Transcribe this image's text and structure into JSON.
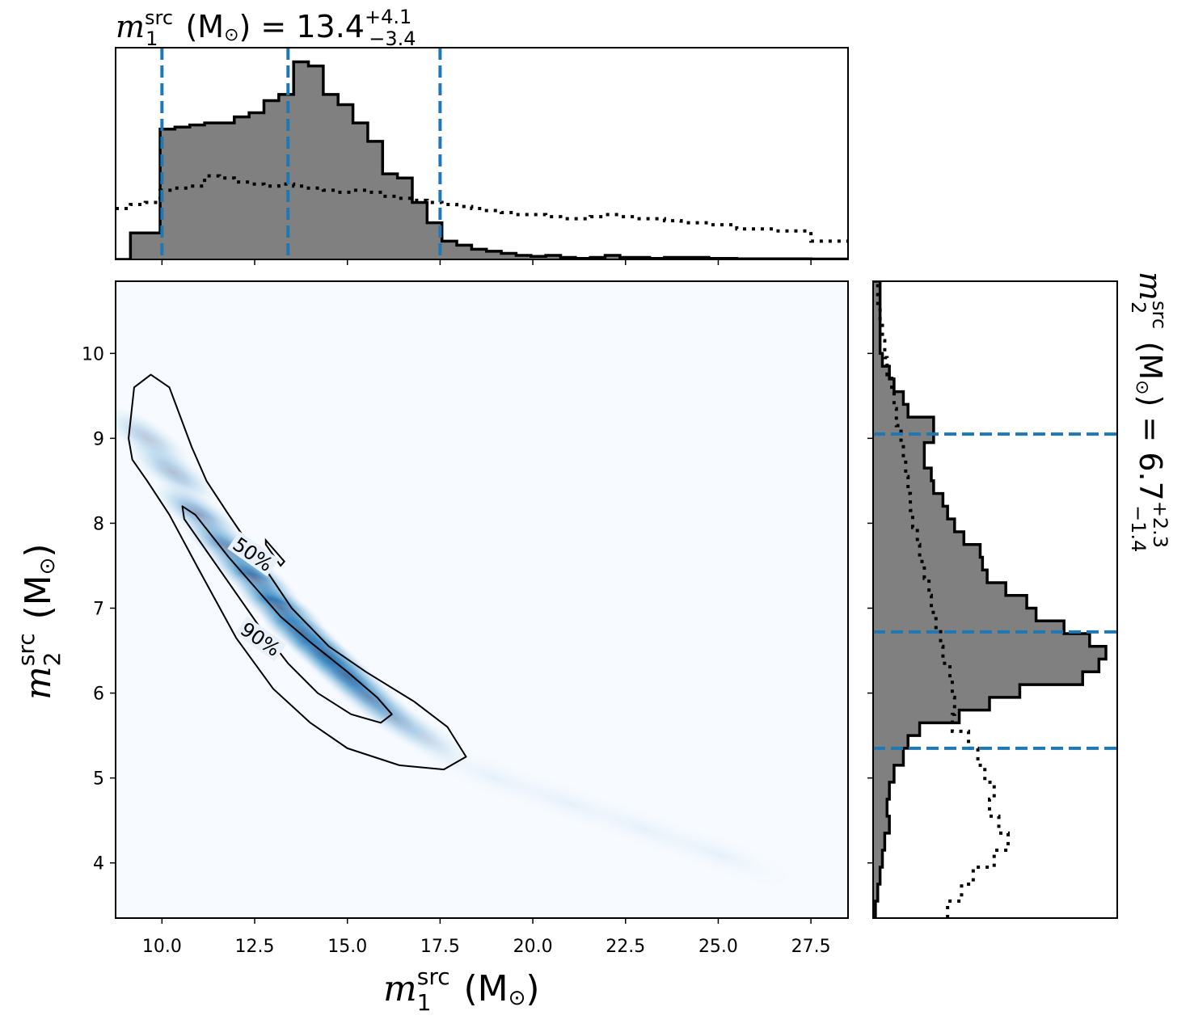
{
  "chart_data": [
    {
      "type": "histogram",
      "panel": "top-marginal",
      "title": {
        "symbol": "m",
        "sub": "1",
        "sup": "src",
        "unit": " (M",
        "sun": "⊙",
        "close": ")",
        "eq": " = 13.4",
        "plus": "+4.1",
        "minus": "−3.4"
      },
      "x_range": [
        8.75,
        28.5
      ],
      "quantiles": [
        10.0,
        13.4,
        17.5
      ],
      "x_ticks": [
        10.0,
        12.5,
        15.0,
        17.5,
        20.0,
        22.5,
        25.0,
        27.5
      ],
      "posterior_bins": [
        [
          8.75,
          0
        ],
        [
          9.15,
          0.13
        ],
        [
          9.55,
          0.13
        ],
        [
          9.95,
          0.64
        ],
        [
          10.35,
          0.65
        ],
        [
          10.75,
          0.66
        ],
        [
          11.15,
          0.67
        ],
        [
          11.55,
          0.67
        ],
        [
          11.95,
          0.7
        ],
        [
          12.35,
          0.72
        ],
        [
          12.75,
          0.78
        ],
        [
          13.15,
          0.81
        ],
        [
          13.55,
          0.97
        ],
        [
          13.95,
          0.95
        ],
        [
          14.35,
          0.81
        ],
        [
          14.75,
          0.76
        ],
        [
          15.15,
          0.67
        ],
        [
          15.55,
          0.58
        ],
        [
          15.95,
          0.42
        ],
        [
          16.35,
          0.4
        ],
        [
          16.75,
          0.28
        ],
        [
          17.15,
          0.18
        ],
        [
          17.55,
          0.09
        ],
        [
          17.95,
          0.07
        ],
        [
          18.35,
          0.05
        ],
        [
          18.75,
          0.04
        ],
        [
          19.15,
          0.03
        ],
        [
          19.55,
          0.02
        ],
        [
          19.95,
          0.015
        ],
        [
          20.35,
          0.02
        ],
        [
          20.75,
          0.01
        ],
        [
          21.15,
          0.005
        ],
        [
          21.55,
          0.01
        ],
        [
          21.95,
          0.02
        ],
        [
          22.35,
          0.01
        ],
        [
          22.75,
          0.01
        ],
        [
          23.15,
          0.005
        ],
        [
          23.55,
          0.01
        ],
        [
          24.0,
          0.01
        ],
        [
          24.75,
          0.005
        ],
        [
          25.5,
          0.003
        ],
        [
          27.5,
          0.002
        ],
        [
          28.5,
          0
        ]
      ],
      "prior_bins": [
        [
          8.75,
          0.25
        ],
        [
          9.15,
          0.27
        ],
        [
          9.55,
          0.28
        ],
        [
          9.95,
          0.34
        ],
        [
          10.35,
          0.35
        ],
        [
          10.75,
          0.36
        ],
        [
          11.15,
          0.41
        ],
        [
          11.55,
          0.4
        ],
        [
          11.95,
          0.38
        ],
        [
          12.35,
          0.37
        ],
        [
          12.75,
          0.36
        ],
        [
          13.15,
          0.37
        ],
        [
          13.55,
          0.36
        ],
        [
          13.95,
          0.35
        ],
        [
          14.35,
          0.34
        ],
        [
          14.75,
          0.33
        ],
        [
          15.15,
          0.34
        ],
        [
          15.55,
          0.33
        ],
        [
          15.95,
          0.31
        ],
        [
          16.35,
          0.3
        ],
        [
          16.75,
          0.29
        ],
        [
          17.15,
          0.28
        ],
        [
          17.55,
          0.27
        ],
        [
          17.95,
          0.26
        ],
        [
          18.35,
          0.25
        ],
        [
          18.75,
          0.24
        ],
        [
          19.15,
          0.23
        ],
        [
          19.55,
          0.22
        ],
        [
          19.95,
          0.22
        ],
        [
          20.35,
          0.21
        ],
        [
          20.75,
          0.2
        ],
        [
          21.15,
          0.2
        ],
        [
          21.55,
          0.21
        ],
        [
          21.95,
          0.22
        ],
        [
          22.35,
          0.21
        ],
        [
          22.75,
          0.2
        ],
        [
          23.15,
          0.2
        ],
        [
          23.55,
          0.19
        ],
        [
          24.0,
          0.18
        ],
        [
          24.75,
          0.17
        ],
        [
          25.5,
          0.15
        ],
        [
          26.5,
          0.14
        ],
        [
          27.5,
          0.09
        ],
        [
          28.5,
          0.09
        ]
      ]
    },
    {
      "type": "heatmap",
      "panel": "joint",
      "xlabel": {
        "symbol": "m",
        "sub": "1",
        "sup": "src",
        "unit": " (M",
        "sun": "⊙",
        "close": ")"
      },
      "ylabel": {
        "symbol": "m",
        "sub": "2",
        "sup": "src",
        "unit": " (M",
        "sun": "⊙",
        "close": ")"
      },
      "x_range": [
        8.75,
        28.5
      ],
      "y_range": [
        3.35,
        10.85
      ],
      "x_ticks": [
        10.0,
        12.5,
        15.0,
        17.5,
        20.0,
        22.5,
        25.0,
        27.5
      ],
      "x_tick_labels": [
        "10.0",
        "12.5",
        "15.0",
        "17.5",
        "20.0",
        "22.5",
        "25.0",
        "27.5"
      ],
      "y_ticks": [
        4,
        5,
        6,
        7,
        8,
        9,
        10
      ],
      "y_tick_labels": [
        "4",
        "5",
        "6",
        "7",
        "8",
        "9",
        "10"
      ],
      "contour_labels": [
        "50%",
        "90%"
      ],
      "colormap": [
        "#f7fbff",
        "#c6dbef",
        "#6baed6",
        "#2171b5",
        "#08306b"
      ],
      "contour_90": [
        [
          9.1,
          9.0
        ],
        [
          9.25,
          9.6
        ],
        [
          9.7,
          9.75
        ],
        [
          10.2,
          9.6
        ],
        [
          10.8,
          8.9
        ],
        [
          11.2,
          8.5
        ],
        [
          11.8,
          8.1
        ],
        [
          12.5,
          7.65
        ],
        [
          13.5,
          7.0
        ],
        [
          14.5,
          6.55
        ],
        [
          15.5,
          6.25
        ],
        [
          16.8,
          5.9
        ],
        [
          17.7,
          5.6
        ],
        [
          18.2,
          5.25
        ],
        [
          17.6,
          5.1
        ],
        [
          16.4,
          5.15
        ],
        [
          15.0,
          5.35
        ],
        [
          14.0,
          5.65
        ],
        [
          13.0,
          6.05
        ],
        [
          12.0,
          6.65
        ],
        [
          11.0,
          7.45
        ],
        [
          10.2,
          8.1
        ],
        [
          9.6,
          8.5
        ],
        [
          9.2,
          8.75
        ],
        [
          9.1,
          9.0
        ]
      ],
      "contour_50": [
        [
          10.55,
          8.2
        ],
        [
          10.9,
          8.1
        ],
        [
          11.8,
          7.6
        ],
        [
          12.6,
          7.2
        ],
        [
          13.2,
          6.9
        ],
        [
          14.0,
          6.6
        ],
        [
          15.0,
          6.25
        ],
        [
          15.8,
          5.95
        ],
        [
          16.2,
          5.75
        ],
        [
          15.9,
          5.65
        ],
        [
          15.1,
          5.75
        ],
        [
          14.2,
          6.0
        ],
        [
          13.4,
          6.35
        ],
        [
          12.6,
          6.8
        ],
        [
          11.8,
          7.3
        ],
        [
          11.0,
          7.8
        ],
        [
          10.6,
          8.05
        ],
        [
          10.55,
          8.2
        ]
      ],
      "contour_50_island": [
        [
          12.8,
          7.8
        ],
        [
          13.3,
          7.55
        ],
        [
          13.2,
          7.5
        ],
        [
          12.8,
          7.75
        ],
        [
          12.8,
          7.8
        ]
      ]
    },
    {
      "type": "histogram",
      "panel": "right-marginal",
      "title": {
        "symbol": "m",
        "sub": "2",
        "sup": "src",
        "unit": " (M",
        "sun": "⊙",
        "close": ")",
        "eq": " = 6.7",
        "plus": "+2.3",
        "minus": "−1.4"
      },
      "y_range": [
        3.35,
        10.85
      ],
      "quantiles": [
        5.35,
        6.72,
        9.05
      ],
      "y_ticks": [
        4,
        5,
        6,
        7,
        8,
        9,
        10
      ],
      "posterior_bins": [
        [
          3.35,
          0.01
        ],
        [
          3.55,
          0.02
        ],
        [
          3.75,
          0.03
        ],
        [
          3.95,
          0.04
        ],
        [
          4.15,
          0.05
        ],
        [
          4.35,
          0.07
        ],
        [
          4.55,
          0.06
        ],
        [
          4.75,
          0.07
        ],
        [
          4.95,
          0.09
        ],
        [
          5.15,
          0.13
        ],
        [
          5.35,
          0.15
        ],
        [
          5.5,
          0.2
        ],
        [
          5.65,
          0.37
        ],
        [
          5.8,
          0.5
        ],
        [
          5.95,
          0.63
        ],
        [
          6.1,
          0.9
        ],
        [
          6.25,
          0.97
        ],
        [
          6.4,
          1.0
        ],
        [
          6.55,
          0.93
        ],
        [
          6.7,
          0.82
        ],
        [
          6.85,
          0.7
        ],
        [
          7.0,
          0.66
        ],
        [
          7.15,
          0.57
        ],
        [
          7.3,
          0.49
        ],
        [
          7.45,
          0.47
        ],
        [
          7.6,
          0.46
        ],
        [
          7.75,
          0.39
        ],
        [
          7.9,
          0.35
        ],
        [
          8.05,
          0.32
        ],
        [
          8.2,
          0.3
        ],
        [
          8.35,
          0.26
        ],
        [
          8.5,
          0.25
        ],
        [
          8.65,
          0.22
        ],
        [
          8.8,
          0.22
        ],
        [
          8.95,
          0.26
        ],
        [
          9.1,
          0.26
        ],
        [
          9.25,
          0.15
        ],
        [
          9.4,
          0.13
        ],
        [
          9.55,
          0.09
        ],
        [
          9.7,
          0.07
        ],
        [
          9.85,
          0.04
        ],
        [
          10.0,
          0.03
        ],
        [
          10.85,
          0.0
        ]
      ],
      "prior_bins": [
        [
          3.35,
          0.32
        ],
        [
          3.55,
          0.38
        ],
        [
          3.75,
          0.43
        ],
        [
          3.95,
          0.52
        ],
        [
          4.15,
          0.58
        ],
        [
          4.35,
          0.54
        ],
        [
          4.55,
          0.5
        ],
        [
          4.75,
          0.52
        ],
        [
          4.95,
          0.48
        ],
        [
          5.15,
          0.45
        ],
        [
          5.35,
          0.41
        ],
        [
          5.55,
          0.34
        ],
        [
          5.75,
          0.35
        ],
        [
          5.95,
          0.34
        ],
        [
          6.15,
          0.33
        ],
        [
          6.35,
          0.3
        ],
        [
          6.55,
          0.29
        ],
        [
          6.75,
          0.27
        ],
        [
          6.95,
          0.25
        ],
        [
          7.15,
          0.24
        ],
        [
          7.35,
          0.22
        ],
        [
          7.55,
          0.2
        ],
        [
          7.75,
          0.19
        ],
        [
          7.95,
          0.17
        ],
        [
          8.15,
          0.16
        ],
        [
          8.35,
          0.15
        ],
        [
          8.55,
          0.14
        ],
        [
          8.75,
          0.13
        ],
        [
          8.95,
          0.12
        ],
        [
          9.15,
          0.1
        ],
        [
          9.35,
          0.09
        ],
        [
          9.55,
          0.08
        ],
        [
          9.75,
          0.06
        ],
        [
          9.95,
          0.05
        ],
        [
          10.15,
          0.04
        ],
        [
          10.35,
          0.03
        ],
        [
          10.55,
          0.02
        ],
        [
          10.85,
          0.02
        ]
      ]
    }
  ]
}
